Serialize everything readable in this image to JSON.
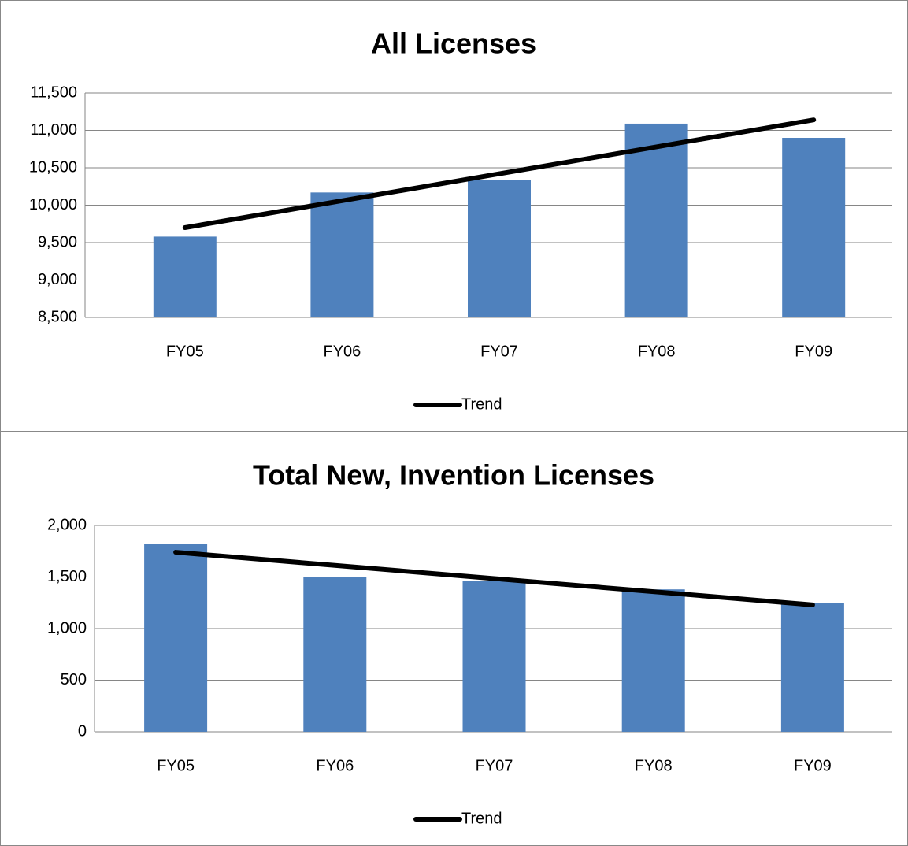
{
  "chart_data": [
    {
      "type": "bar",
      "title": "All Licenses",
      "categories": [
        "FY05",
        "FY06",
        "FY07",
        "FY08",
        "FY09"
      ],
      "series": [
        {
          "color": "#4f81bd",
          "values": [
            9580,
            10170,
            10340,
            11090,
            10900
          ]
        },
        {
          "name": "Trend",
          "type": "line",
          "color": "#000000",
          "values": [
            9700,
            10060,
            10420,
            10780,
            11140
          ]
        }
      ],
      "ylim": [
        8500,
        11500
      ],
      "yticks": [
        {
          "value": 8500,
          "label": "8,500"
        },
        {
          "value": 9000,
          "label": "9,000"
        },
        {
          "value": 9500,
          "label": "9,500"
        },
        {
          "value": 10000,
          "label": "10,000"
        },
        {
          "value": 10500,
          "label": "10,500"
        },
        {
          "value": 11000,
          "label": "11,000"
        },
        {
          "value": 11500,
          "label": "11,500"
        }
      ],
      "grid": true,
      "legend": "bottom"
    },
    {
      "type": "bar",
      "title": "Total New, Invention Licenses",
      "categories": [
        "FY05",
        "FY06",
        "FY07",
        "FY08",
        "FY09"
      ],
      "series": [
        {
          "color": "#4f81bd",
          "values": [
            1824,
            1500,
            1465,
            1380,
            1245
          ]
        },
        {
          "name": "Trend",
          "type": "line",
          "color": "#000000",
          "values": [
            1740,
            1612.5,
            1485,
            1357.5,
            1230
          ]
        }
      ],
      "ylim": [
        0,
        2000
      ],
      "yticks": [
        0,
        500,
        {
          "value": 1000,
          "label": "1,000"
        },
        {
          "value": 1500,
          "label": "1,500"
        },
        {
          "value": 2000,
          "label": "2,000"
        }
      ],
      "grid": true,
      "legend": "bottom"
    }
  ]
}
